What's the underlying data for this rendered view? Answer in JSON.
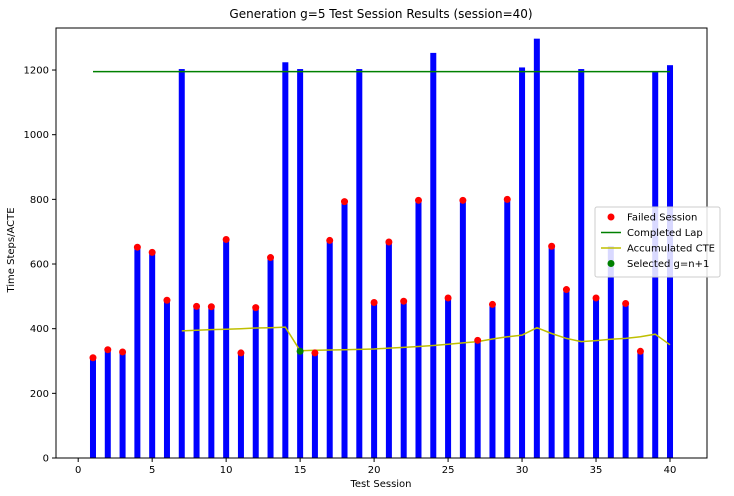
{
  "chart_data": {
    "type": "bar",
    "title": "Generation g=5 Test Session Results (session=40)",
    "xlabel": "Test Session",
    "ylabel": "Time Steps/ACTE",
    "xlim": [
      -1.5,
      42.5
    ],
    "ylim": [
      0,
      1330
    ],
    "xticks": [
      0,
      5,
      10,
      15,
      20,
      25,
      30,
      35,
      40
    ],
    "yticks": [
      0,
      200,
      400,
      600,
      800,
      1000,
      1200
    ],
    "grid": false,
    "legend_position": "center-right",
    "x": [
      1,
      2,
      3,
      4,
      5,
      6,
      7,
      8,
      9,
      10,
      11,
      12,
      13,
      14,
      15,
      16,
      17,
      18,
      19,
      20,
      21,
      22,
      23,
      24,
      25,
      26,
      27,
      28,
      29,
      30,
      31,
      32,
      33,
      34,
      35,
      36,
      37,
      38,
      39,
      40
    ],
    "series": [
      {
        "kind": "bar",
        "color": "#0000ff",
        "values": [
          310,
          335,
          328,
          652,
          636,
          488,
          1203,
          469,
          468,
          676,
          325,
          465,
          620,
          1224,
          1203,
          325,
          673,
          793,
          1203,
          481,
          668,
          485,
          797,
          1253,
          495,
          797,
          364,
          475,
          800,
          1208,
          1297,
          655,
          521,
          1203,
          495,
          655,
          478,
          330,
          1196,
          1215
        ]
      },
      {
        "name": "Failed Session",
        "kind": "scatter",
        "color": "#ff0000",
        "x": [
          1,
          2,
          3,
          4,
          5,
          6,
          8,
          9,
          10,
          11,
          12,
          13,
          16,
          17,
          18,
          20,
          21,
          22,
          23,
          25,
          26,
          27,
          28,
          29,
          32,
          33,
          35,
          37,
          38
        ],
        "values": [
          310,
          335,
          328,
          652,
          636,
          488,
          469,
          468,
          676,
          325,
          465,
          620,
          325,
          673,
          793,
          481,
          668,
          485,
          797,
          495,
          797,
          364,
          475,
          800,
          655,
          521,
          495,
          478,
          330
        ]
      },
      {
        "name": "Completed Lap",
        "kind": "line",
        "color": "#008000",
        "x": [
          1,
          40
        ],
        "values": [
          1195,
          1195
        ]
      },
      {
        "name": "Accumulated CTE",
        "kind": "line",
        "color": "#bfbf00",
        "x": [
          7,
          8,
          9,
          10,
          11,
          12,
          13,
          14,
          15,
          16,
          17,
          18,
          19,
          20,
          21,
          22,
          23,
          24,
          25,
          26,
          27,
          28,
          29,
          30,
          31,
          32,
          33,
          34,
          35,
          36,
          37,
          38,
          39,
          40
        ],
        "values": [
          393,
          395,
          397,
          398,
          400,
          402,
          403,
          405,
          332,
          333,
          334,
          335,
          336,
          337,
          340,
          342,
          345,
          348,
          352,
          356,
          360,
          368,
          375,
          380,
          403,
          385,
          370,
          360,
          363,
          367,
          370,
          375,
          383,
          350
        ]
      },
      {
        "name": "Selected g=n+1",
        "kind": "scatter",
        "color": "#008000",
        "x": [
          15
        ],
        "values": [
          330
        ]
      }
    ]
  }
}
